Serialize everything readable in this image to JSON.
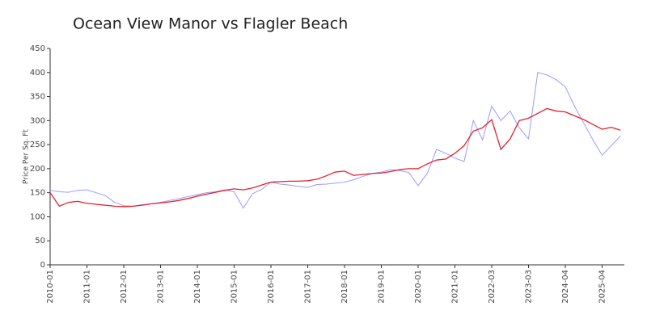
{
  "chart_data": {
    "type": "line",
    "title": "Ocean View Manor vs Flagler Beach",
    "y_label": "Price Per Sq. Ft",
    "categories": [
      "2010-01",
      null,
      null,
      null,
      "2011-01",
      null,
      null,
      null,
      "2012-01",
      null,
      null,
      null,
      "2013-01",
      null,
      null,
      null,
      "2014-01",
      null,
      null,
      null,
      "2015-01",
      null,
      null,
      null,
      "2016-01",
      null,
      null,
      null,
      "2017-01",
      null,
      null,
      null,
      "2018-01",
      null,
      null,
      null,
      "2019-01",
      null,
      null,
      null,
      "2020-01",
      null,
      null,
      null,
      "2021-01",
      null,
      null,
      null,
      "2022-03",
      null,
      null,
      null,
      "2023-03",
      null,
      null,
      null,
      "2024-04",
      null,
      null,
      null,
      "2025-04",
      null,
      null
    ],
    "series": [
      {
        "color": "#9999ff",
        "values": [
          155,
          152,
          151,
          155,
          156,
          150,
          144,
          130,
          123,
          122,
          125,
          127,
          130,
          134,
          138,
          142,
          146,
          150,
          152,
          156,
          152,
          118,
          148,
          157,
          172,
          168,
          166,
          163,
          161,
          167,
          168,
          170,
          172,
          177,
          184,
          190,
          193,
          198,
          196,
          192,
          165,
          190,
          240,
          232,
          222,
          215,
          300,
          260,
          330,
          300,
          320,
          285,
          262,
          400,
          395,
          385,
          370,
          330,
          295,
          260,
          228,
          248,
          268
        ]
      },
      {
        "color": "#e8202a",
        "values": [
          150,
          122,
          130,
          132,
          128,
          126,
          124,
          122,
          121,
          122,
          124,
          127,
          129,
          131,
          134,
          138,
          143,
          147,
          151,
          155,
          158,
          156,
          160,
          166,
          172,
          173,
          174,
          174,
          175,
          178,
          185,
          193,
          195,
          186,
          188,
          190,
          191,
          194,
          198,
          200,
          200,
          210,
          218,
          220,
          232,
          248,
          278,
          285,
          302,
          240,
          262,
          300,
          305,
          315,
          325,
          320,
          318,
          310,
          302,
          292,
          282,
          286,
          280
        ]
      }
    ],
    "ylim": [
      0,
      450
    ],
    "yticks": [
      0,
      50,
      100,
      150,
      200,
      250,
      300,
      350,
      400,
      450
    ]
  }
}
